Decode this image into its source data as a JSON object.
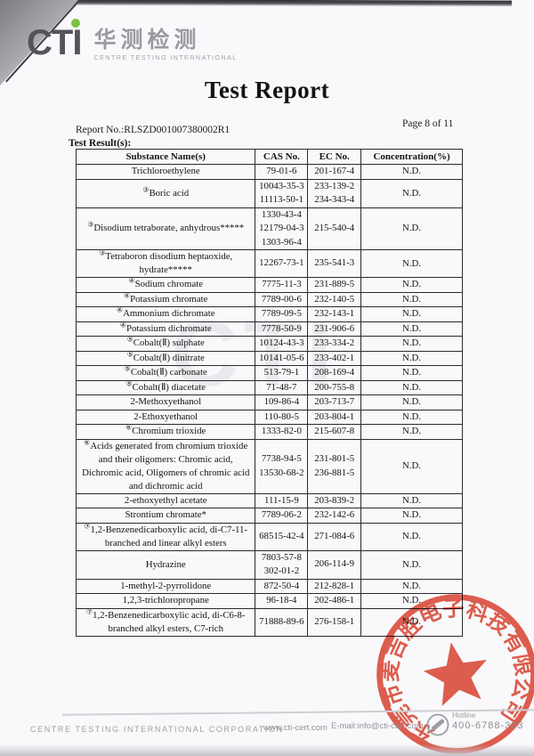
{
  "logo": {
    "acronym": "CTI",
    "chinese": "华测检测",
    "subtitle": "CENTRE TESTING INTERNATIONAL",
    "accent_green": "#7dc242",
    "text_gray": "#57525d"
  },
  "header": {
    "title": "Test Report",
    "report_no": "Report No.:RLSZD001007380002R1",
    "page_label": "Page 8 of 11",
    "section_label": "Test Result(s):"
  },
  "watermark": "CTI",
  "table": {
    "headers": [
      "Substance Name(s)",
      "CAS No.",
      "EC No.",
      "Concentration(%)"
    ],
    "rows": [
      {
        "marker": "",
        "name": "Trichloroethylene",
        "cas": [
          "79-01-6"
        ],
        "ec": [
          "201-167-4"
        ],
        "conc": "N.D."
      },
      {
        "marker": "③",
        "name": "Boric acid",
        "cas": [
          "10043-35-3",
          "11113-50-1"
        ],
        "ec": [
          "233-139-2",
          "234-343-4"
        ],
        "conc": "N.D."
      },
      {
        "marker": "③",
        "name": "Disodium tetraborate, anhydrous*****",
        "cas": [
          "1330-43-4",
          "12179-04-3",
          "1303-96-4"
        ],
        "ec": [
          "215-540-4"
        ],
        "conc": "N.D."
      },
      {
        "marker": "③",
        "name": "Tetraboron disodium heptaoxide, hydrate*****",
        "cas": [
          "12267-73-1"
        ],
        "ec": [
          "235-541-3"
        ],
        "conc": "N.D."
      },
      {
        "marker": "④",
        "name": "Sodium chromate",
        "cas": [
          "7775-11-3"
        ],
        "ec": [
          "231-889-5"
        ],
        "conc": "N.D."
      },
      {
        "marker": "④",
        "name": "Potassium chromate",
        "cas": [
          "7789-00-6"
        ],
        "ec": [
          "232-140-5"
        ],
        "conc": "N.D."
      },
      {
        "marker": "④",
        "name": "Ammonium dichromate",
        "cas": [
          "7789-09-5"
        ],
        "ec": [
          "232-143-1"
        ],
        "conc": "N.D."
      },
      {
        "marker": "④",
        "name": "Potassium dichromate",
        "cas": [
          "7778-50-9"
        ],
        "ec": [
          "231-906-6"
        ],
        "conc": "N.D."
      },
      {
        "marker": "⑤",
        "name": "Cobalt(Ⅱ) sulphate",
        "cas": [
          "10124-43-3"
        ],
        "ec": [
          "233-334-2"
        ],
        "conc": "N.D."
      },
      {
        "marker": "⑤",
        "name": "Cobalt(Ⅱ) dinitrate",
        "cas": [
          "10141-05-6"
        ],
        "ec": [
          "233-402-1"
        ],
        "conc": "N.D."
      },
      {
        "marker": "⑤",
        "name": "Cobalt(Ⅱ) carbonate",
        "cas": [
          "513-79-1"
        ],
        "ec": [
          "208-169-4"
        ],
        "conc": "N.D."
      },
      {
        "marker": "⑤",
        "name": "Cobalt(Ⅱ) diacetate",
        "cas": [
          "71-48-7"
        ],
        "ec": [
          "200-755-8"
        ],
        "conc": "N.D."
      },
      {
        "marker": "",
        "name": "2-Methoxyethanol",
        "cas": [
          "109-86-4"
        ],
        "ec": [
          "203-713-7"
        ],
        "conc": "N.D."
      },
      {
        "marker": "",
        "name": "2-Ethoxyethanol",
        "cas": [
          "110-80-5"
        ],
        "ec": [
          "203-804-1"
        ],
        "conc": "N.D."
      },
      {
        "marker": "⑥",
        "name": "Chromium trioxide",
        "cas": [
          "1333-82-0"
        ],
        "ec": [
          "215-607-8"
        ],
        "conc": "N.D."
      },
      {
        "marker": "⑥",
        "name": "Acids generated from chromium trioxide and their oligomers: Chromic acid, Dichromic acid, Oligomers of chromic acid and dichromic acid",
        "cas": [
          "7738-94-5",
          "13530-68-2"
        ],
        "ec": [
          "231-801-5",
          "236-881-5"
        ],
        "conc": "N.D."
      },
      {
        "marker": "",
        "name": "2-ethoxyethyl acetate",
        "cas": [
          "111-15-9"
        ],
        "ec": [
          "203-839-2"
        ],
        "conc": "N.D."
      },
      {
        "marker": "",
        "name": "Strontium chromate*",
        "cas": [
          "7789-06-2"
        ],
        "ec": [
          "232-142-6"
        ],
        "conc": "N.D."
      },
      {
        "marker": "⑦",
        "name": "1,2-Benzenedicarboxylic acid, di-C7-11-branched and linear alkyl esters",
        "cas": [
          "68515-42-4"
        ],
        "ec": [
          "271-084-6"
        ],
        "conc": "N.D."
      },
      {
        "marker": "",
        "name": "Hydrazine",
        "cas": [
          "7803-57-8",
          "302-01-2"
        ],
        "ec": [
          "206-114-9"
        ],
        "conc": "N.D."
      },
      {
        "marker": "",
        "name": "1-methyl-2-pyrrolidone",
        "cas": [
          "872-50-4"
        ],
        "ec": [
          "212-828-1"
        ],
        "conc": "N.D."
      },
      {
        "marker": "",
        "name": "1,2,3-trichloropropane",
        "cas": [
          "96-18-4"
        ],
        "ec": [
          "202-486-1"
        ],
        "conc": "N.D."
      },
      {
        "marker": "⑦",
        "name": "1,2-Benzenedicarboxylic acid, di-C6-8-branched alkyl esters, C7-rich",
        "cas": [
          "71888-89-6"
        ],
        "ec": [
          "276-158-1"
        ],
        "conc": "N.D."
      }
    ]
  },
  "stamp": {
    "company_ring_text": "东莞市麦吉胜电子科技有限公司",
    "color": "#dd4330"
  },
  "footer": {
    "company": "CENTRE TESTING INTERNATIONAL CORPORATION",
    "website": "www.cti-cert.com",
    "email": "E-mail:info@cti-cert.com",
    "hotline_label": "Hotline",
    "hotline_number": "400-6788-333"
  }
}
